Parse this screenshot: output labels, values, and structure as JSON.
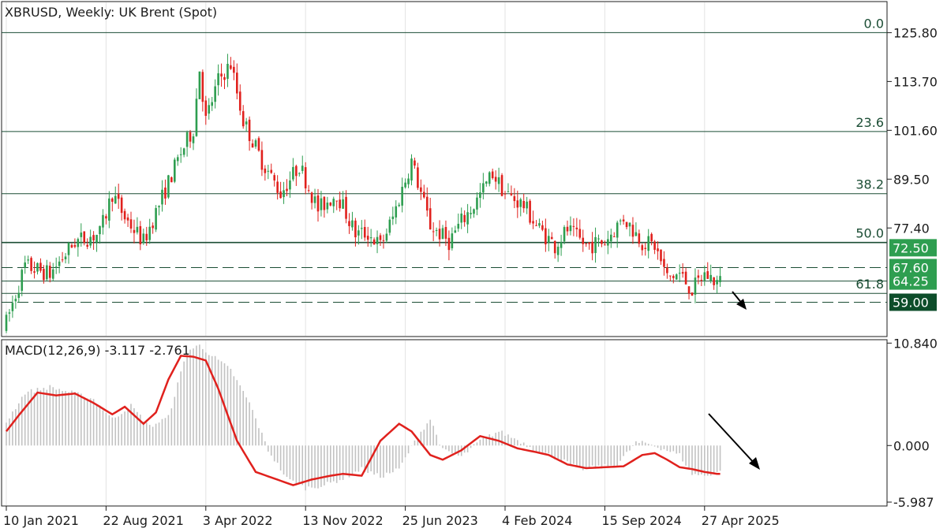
{
  "chart_data": [
    {
      "type": "candlestick",
      "title": "XBRUSD, Weekly:  UK Brent (Spot)",
      "y_ticks": [
        77.4,
        89.5,
        101.6,
        113.7,
        125.8
      ],
      "y_tick_labels": [
        "77.40",
        "89.50",
        "101.60",
        "113.70",
        "125.80"
      ],
      "ylim": [
        50.5,
        133.5
      ],
      "x_tick_labels": [
        "10 Jan 2021",
        "22 Aug 2021",
        "3 Apr 2022",
        "13 Nov 2022",
        "25 Jun 2023",
        "4 Feb 2024",
        "15 Sep 2024",
        "27 Apr 2025"
      ],
      "x_tick_index": [
        0,
        32,
        64,
        96,
        128,
        160,
        192,
        224
      ],
      "ohlc_anchors": {
        "index": [
          0,
          6,
          14,
          22,
          30,
          34,
          38,
          44,
          50,
          56,
          60,
          62,
          64,
          68,
          72,
          76,
          82,
          88,
          94,
          100,
          106,
          112,
          116,
          120,
          124,
          130,
          136,
          142,
          146,
          150,
          156,
          160,
          166,
          170,
          176,
          180,
          186,
          192,
          198,
          204,
          208,
          212,
          216,
          220,
          222,
          224,
          226,
          228
        ],
        "close": [
          54,
          68,
          66,
          74,
          76,
          86,
          80,
          74,
          85,
          96,
          102,
          117,
          104,
          114,
          118,
          104,
          94,
          86,
          93,
          82,
          86,
          76,
          76,
          73,
          80,
          94,
          78,
          74,
          79,
          83,
          91,
          86,
          83,
          78,
          73,
          77,
          73,
          74,
          80,
          74,
          73,
          65,
          66,
          62,
          64,
          66,
          65,
          64
        ]
      },
      "fibonacci": [
        {
          "level": "0.0",
          "price": 125.8
        },
        {
          "level": "23.6",
          "price": 101.3
        },
        {
          "level": "38.2",
          "price": 85.9
        },
        {
          "level": "50.0",
          "price": 73.8
        },
        {
          "level": "61.8",
          "price": 61.2
        }
      ],
      "horizontal_lines": [
        {
          "price": 67.6,
          "style": "dashed"
        },
        {
          "price": 64.25,
          "style": "solid"
        },
        {
          "price": 59.0,
          "style": "dashed"
        }
      ],
      "price_tags": [
        {
          "label": "72.50",
          "price": 72.5,
          "color": "#2e9e50"
        },
        {
          "label": "67.60",
          "price": 67.6,
          "color": "#2e9e50"
        },
        {
          "label": "64.25",
          "price": 64.25,
          "color": "#2e9e50"
        },
        {
          "label": "59.00",
          "price": 59.0,
          "color": "#0d4d2a"
        }
      ],
      "colors": {
        "bull": "#2e9e50",
        "bear": "#e0211d",
        "fib": "#1b4d34"
      }
    },
    {
      "type": "histogram-line",
      "title": "MACD(12,26,9) -3.117 -2.761",
      "y_ticks": [
        10.84,
        0.0,
        -5.987
      ],
      "y_tick_labels": [
        "10.840",
        "0.000",
        "-5.987"
      ],
      "ylim": [
        -6.4,
        11.2
      ],
      "histogram": {
        "index": [
          0,
          6,
          14,
          22,
          28,
          34,
          40,
          46,
          52,
          58,
          62,
          66,
          72,
          78,
          84,
          90,
          96,
          102,
          108,
          114,
          120,
          126,
          132,
          136,
          140,
          146,
          152,
          158,
          164,
          170,
          178,
          184,
          190,
          196,
          202,
          206,
          212,
          216,
          220,
          224,
          226,
          228
        ],
        "values": [
          2.5,
          5.6,
          6.2,
          5.5,
          4.9,
          2.8,
          4.2,
          2.0,
          3.0,
          10.0,
          10.6,
          9.5,
          8.0,
          4.5,
          -0.5,
          -3.5,
          -4.5,
          -4.2,
          -3.5,
          -2.5,
          -3.3,
          -2.5,
          1.0,
          2.8,
          -0.5,
          -1.2,
          0.5,
          1.5,
          0.6,
          -0.5,
          -1.5,
          -2.5,
          -2.3,
          -2.0,
          0.3,
          0.2,
          -0.5,
          -1.0,
          -3.0,
          -3.2,
          -3.0,
          -2.8
        ]
      },
      "signal_line": {
        "index": [
          0,
          4,
          10,
          16,
          22,
          28,
          34,
          38,
          44,
          48,
          52,
          56,
          60,
          64,
          68,
          74,
          80,
          86,
          92,
          98,
          104,
          108,
          114,
          120,
          126,
          130,
          136,
          140,
          146,
          152,
          158,
          164,
          170,
          174,
          180,
          186,
          192,
          198,
          204,
          208,
          212,
          216,
          220,
          224,
          228
        ],
        "values": [
          1.5,
          3.2,
          5.6,
          5.3,
          5.5,
          4.5,
          3.3,
          4.1,
          2.3,
          3.5,
          7.0,
          9.5,
          9.4,
          9.0,
          6.0,
          0.5,
          -2.8,
          -3.5,
          -4.2,
          -3.6,
          -3.2,
          -3.0,
          -3.2,
          0.5,
          2.3,
          1.5,
          -1.0,
          -1.5,
          -0.5,
          1.0,
          0.5,
          -0.3,
          -0.7,
          -1.0,
          -2.0,
          -2.4,
          -2.3,
          -2.2,
          -1.0,
          -0.8,
          -1.5,
          -2.3,
          -2.5,
          -2.8,
          -3.0
        ]
      },
      "colors": {
        "histogram": "#c2c2c2",
        "signal": "#e0211d"
      }
    }
  ]
}
